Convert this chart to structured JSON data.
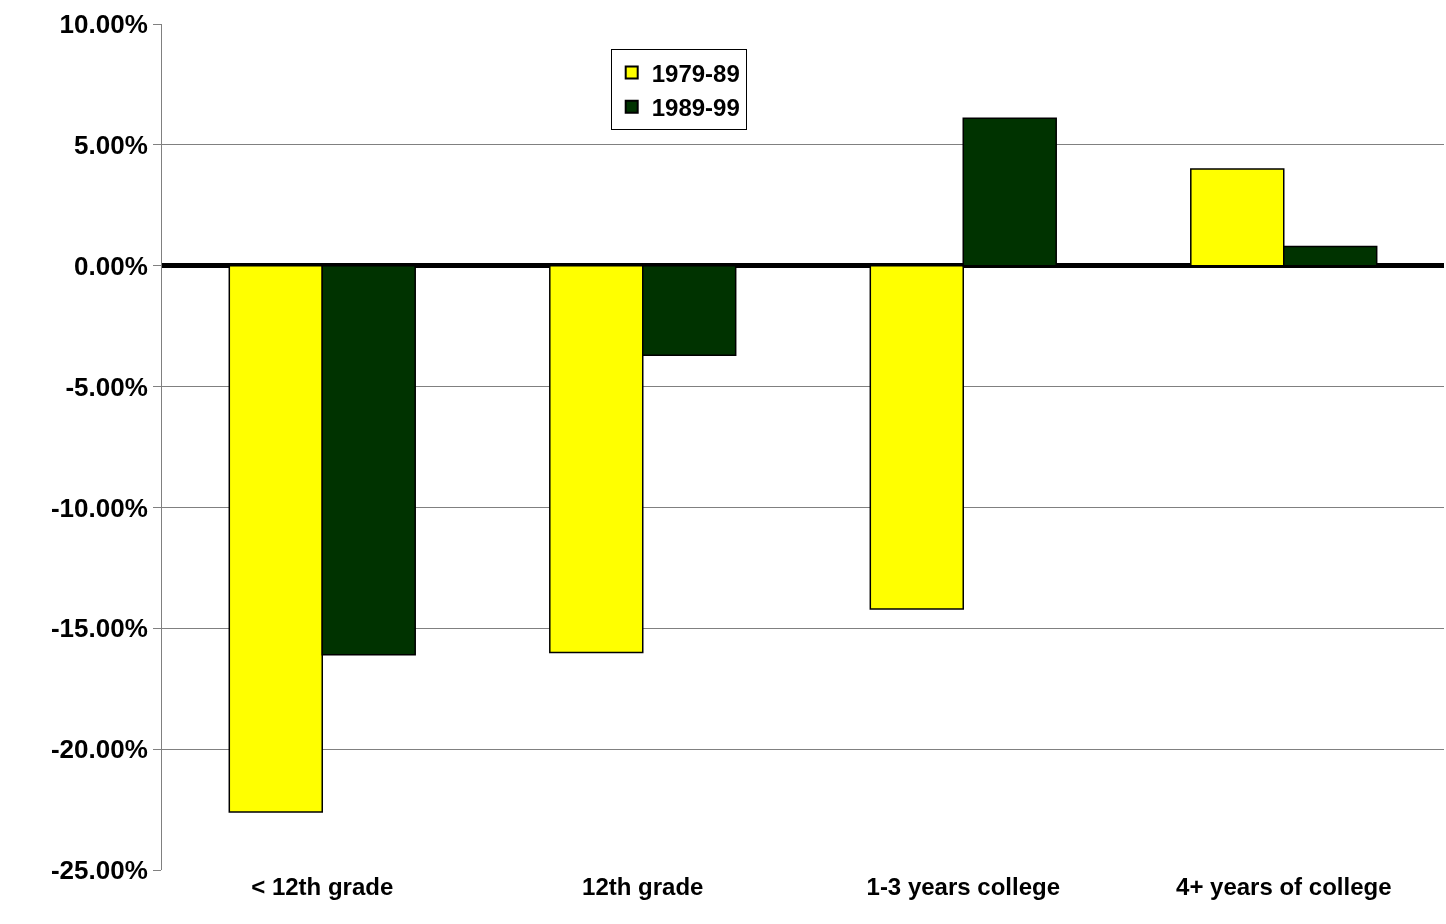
{
  "chart_data": {
    "type": "bar",
    "categories": [
      "< 12th grade",
      "12th grade",
      "1-3 years college",
      "4+ years of college"
    ],
    "series": [
      {
        "name": "1979-89",
        "color": "#ffff00",
        "values": [
          -22.6,
          -16.0,
          -14.2,
          4.0
        ]
      },
      {
        "name": "1989-99",
        "color": "#003300",
        "values": [
          -16.1,
          -3.7,
          6.1,
          0.8
        ]
      }
    ],
    "ylim": [
      -25,
      10
    ],
    "yticks": [
      {
        "value": -25,
        "label": "-25.00%"
      },
      {
        "value": -20,
        "label": "-20.00%"
      },
      {
        "value": -15,
        "label": "-15.00%"
      },
      {
        "value": -10,
        "label": "-10.00%"
      },
      {
        "value": -5,
        "label": "-5.00%"
      },
      {
        "value": 0,
        "label": "0.00%"
      },
      {
        "value": 5,
        "label": "5.00%"
      },
      {
        "value": 10,
        "label": "10.00%"
      }
    ],
    "grid": "y",
    "legend": "top"
  }
}
